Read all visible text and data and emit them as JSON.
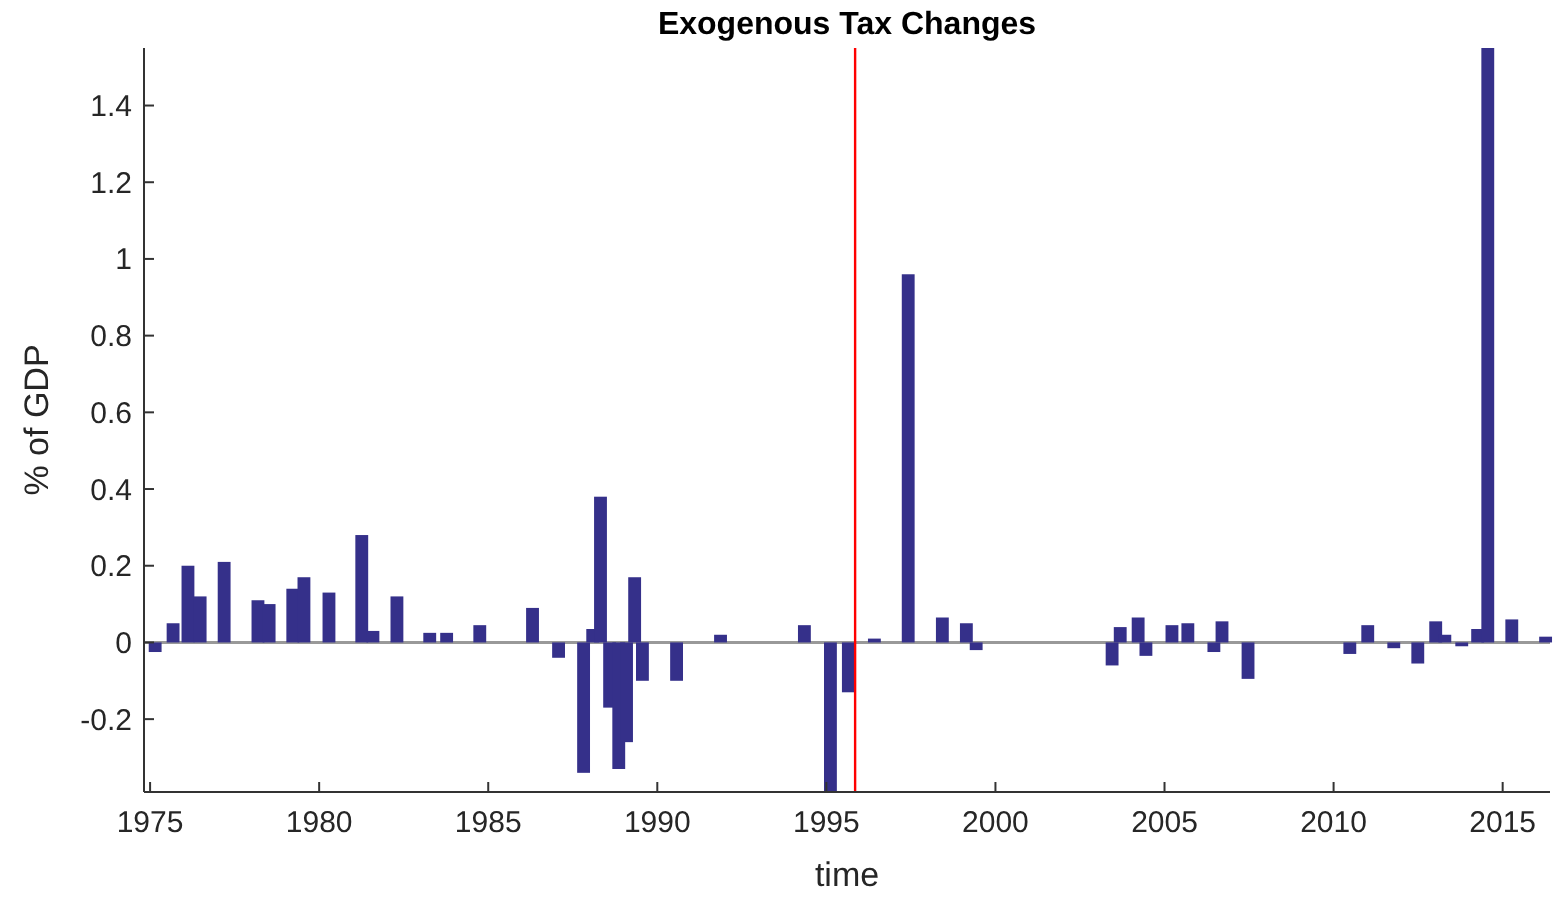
{
  "chart_data": {
    "type": "bar",
    "title": "Exogenous Tax Changes",
    "xlabel": "time",
    "ylabel": "% of GDP",
    "x": [
      1975.15,
      1975.68,
      1976.12,
      1976.48,
      1977.19,
      1978.19,
      1978.52,
      1979.22,
      1979.55,
      1980.29,
      1981.26,
      1981.59,
      1982.3,
      1983.27,
      1983.77,
      1984.75,
      1986.31,
      1987.08,
      1987.82,
      1988.09,
      1988.32,
      1988.59,
      1988.86,
      1989.09,
      1989.33,
      1989.56,
      1990.57,
      1991.87,
      1994.35,
      1995.12,
      1995.65,
      1996.42,
      1997.42,
      1998.43,
      1999.14,
      1999.43,
      2003.45,
      2003.69,
      2004.22,
      2004.45,
      2005.22,
      2005.69,
      2006.46,
      2006.7,
      2007.47,
      2010.48,
      2011.01,
      2011.78,
      2012.49,
      2013.02,
      2013.29,
      2013.79,
      2014.26,
      2014.56,
      2015.27,
      2016.27
    ],
    "values": [
      -0.025,
      0.05,
      0.2,
      0.12,
      0.21,
      0.11,
      0.1,
      0.14,
      0.17,
      0.13,
      0.28,
      0.03,
      0.12,
      0.025,
      0.025,
      0.045,
      0.09,
      -0.04,
      -0.34,
      0.035,
      0.38,
      -0.17,
      -0.33,
      -0.26,
      0.17,
      -0.1,
      -0.1,
      0.02,
      0.045,
      -0.39,
      -0.13,
      0.01,
      0.96,
      0.065,
      0.05,
      -0.02,
      -0.06,
      0.04,
      0.065,
      -0.035,
      0.045,
      0.05,
      -0.025,
      0.055,
      -0.095,
      -0.03,
      0.045,
      -0.015,
      -0.055,
      0.055,
      0.02,
      -0.01,
      0.035,
      1.55,
      0.06,
      0.015
    ],
    "color": "#35308a",
    "xlim": [
      1974.82,
      2016.4
    ],
    "xticks": [
      1975,
      1980,
      1985,
      1990,
      1995,
      2000,
      2005,
      2010,
      2015
    ],
    "ylim": [
      -0.39,
      1.55
    ],
    "yticks": [
      -0.2,
      0,
      0.2,
      0.4,
      0.6,
      0.8,
      1,
      1.2,
      1.4
    ],
    "ref_lines": [
      {
        "axis": "x",
        "value": 1995.85,
        "color": "#ff0000"
      }
    ]
  }
}
